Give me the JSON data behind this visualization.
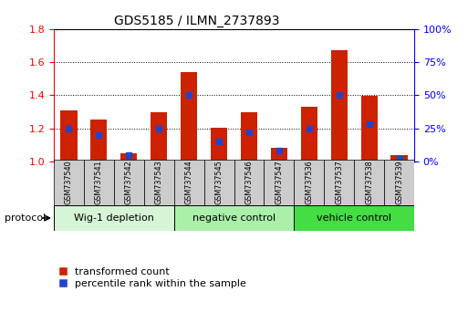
{
  "title": "GDS5185 / ILMN_2737893",
  "samples": [
    "GSM737540",
    "GSM737541",
    "GSM737542",
    "GSM737543",
    "GSM737544",
    "GSM737545",
    "GSM737546",
    "GSM737547",
    "GSM737536",
    "GSM737537",
    "GSM737538",
    "GSM737539"
  ],
  "transformed_counts": [
    1.31,
    1.255,
    1.05,
    1.295,
    1.54,
    1.205,
    1.295,
    1.085,
    1.33,
    1.67,
    1.395,
    1.04
  ],
  "percentile_ranks": [
    25,
    20,
    5,
    25,
    50,
    15,
    22,
    8,
    25,
    50,
    28,
    2
  ],
  "groups": [
    {
      "label": "Wig-1 depletion",
      "start": 0,
      "end": 4,
      "color": "#d6f5d6"
    },
    {
      "label": "negative control",
      "start": 4,
      "end": 8,
      "color": "#aaf0aa"
    },
    {
      "label": "vehicle control",
      "start": 8,
      "end": 12,
      "color": "#44dd44"
    }
  ],
  "ylim_left": [
    1.0,
    1.8
  ],
  "ylim_right": [
    0,
    100
  ],
  "yticks_left": [
    1.0,
    1.2,
    1.4,
    1.6,
    1.8
  ],
  "yticks_right": [
    0,
    25,
    50,
    75,
    100
  ],
  "ytick_labels_right": [
    "0%",
    "25%",
    "50%",
    "75%",
    "100%"
  ],
  "bar_color": "#cc2200",
  "marker_color": "#2244cc",
  "bar_width": 0.55,
  "bg_color": "#ffffff",
  "legend_items": [
    "transformed count",
    "percentile rank within the sample"
  ],
  "protocol_label": "protocol"
}
